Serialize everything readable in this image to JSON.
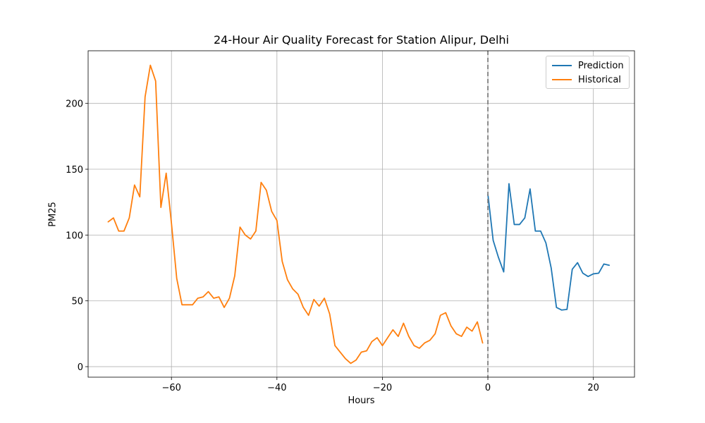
{
  "chart_data": {
    "type": "line",
    "title": "24-Hour Air Quality Forecast for Station Alipur, Delhi",
    "xlabel": "Hours",
    "ylabel": "PM25",
    "xlim": [
      -75.8,
      27.8
    ],
    "ylim": [
      -8,
      240
    ],
    "xticks": [
      -60,
      -40,
      -20,
      0,
      20
    ],
    "xtick_labels": [
      "−60",
      "−40",
      "−20",
      "0",
      "20"
    ],
    "yticks": [
      0,
      50,
      100,
      150,
      200
    ],
    "ytick_labels": [
      "0",
      "50",
      "100",
      "150",
      "200"
    ],
    "grid": true,
    "legend_position": "top-right",
    "vline": {
      "x": 0,
      "style": "dashed",
      "color": "#808080"
    },
    "series": [
      {
        "name": "Prediction",
        "color": "#1f77b4",
        "x": [
          0,
          1,
          2,
          3,
          4,
          5,
          6,
          7,
          8,
          9,
          10,
          11,
          12,
          13,
          14,
          15,
          16,
          17,
          18,
          19,
          20,
          21,
          22,
          23
        ],
        "y": [
          131,
          96,
          83,
          72,
          139,
          108,
          108,
          113,
          135,
          103,
          103,
          94,
          75,
          45,
          43,
          43.5,
          74,
          79,
          71,
          68.5,
          70.5,
          71,
          78,
          77
        ]
      },
      {
        "name": "Historical",
        "color": "#ff7f0e",
        "x": [
          -72,
          -71,
          -70,
          -69,
          -68,
          -67,
          -66,
          -65,
          -64,
          -63,
          -62,
          -61,
          -60,
          -59,
          -58,
          -57,
          -56,
          -55,
          -54,
          -53,
          -52,
          -51,
          -50,
          -49,
          -48,
          -47,
          -46,
          -45,
          -44,
          -43,
          -42,
          -41,
          -40,
          -39,
          -38,
          -37,
          -36,
          -35,
          -34,
          -33,
          -32,
          -31,
          -30,
          -29,
          -28,
          -27,
          -26,
          -25,
          -24,
          -23,
          -22,
          -21,
          -20,
          -19,
          -18,
          -17,
          -16,
          -15,
          -14,
          -13,
          -12,
          -11,
          -10,
          -9,
          -8,
          -7,
          -6,
          -5,
          -4,
          -3,
          -2,
          -1
        ],
        "y": [
          110,
          113,
          103,
          103,
          113,
          138,
          129,
          205,
          229,
          217,
          121,
          147,
          109,
          67,
          47,
          47,
          47,
          52,
          53,
          57,
          52,
          53,
          45,
          52,
          69,
          106,
          100,
          97,
          103,
          140,
          134,
          118,
          111,
          80,
          66,
          59,
          55,
          45,
          39,
          51,
          46,
          52,
          40,
          16,
          11,
          6,
          2.5,
          5,
          11,
          12,
          19,
          22,
          16,
          22,
          28,
          23,
          33,
          23,
          16,
          14,
          18,
          20,
          25,
          39,
          41,
          31,
          25,
          23,
          30,
          27,
          34,
          18
        ]
      }
    ]
  }
}
